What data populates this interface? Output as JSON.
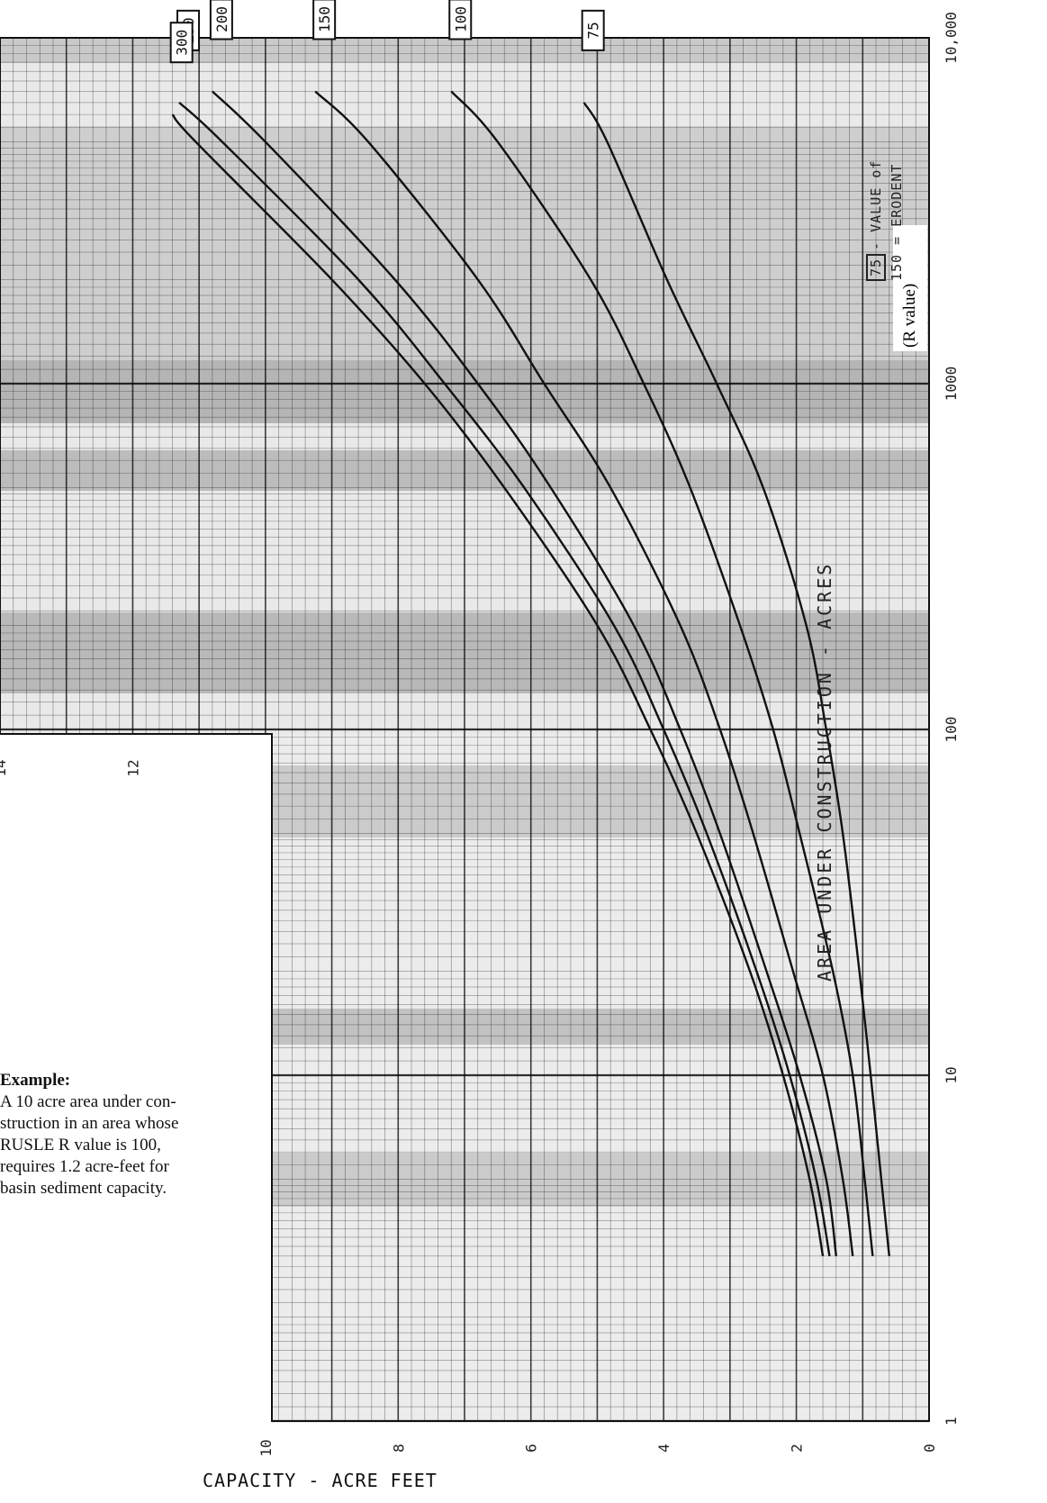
{
  "example": {
    "title": "Example:",
    "lines": [
      "A 10 acre area under con-",
      "struction in an area whose",
      "RUSLE R value is 100,",
      "requires 1.2 acre-feet for",
      "basin sediment capacity."
    ]
  },
  "annotation": {
    "r_value_label": "(R value)"
  },
  "legend_note": {
    "boxed": "75",
    "text": "- VALUE of",
    "sub": "150 = ERODENT"
  },
  "chart_data": {
    "type": "line",
    "title": "",
    "xlabel": "AREA UNDER CONSTRUCTION - ACRES",
    "ylabel": "CAPACITY - ACRE FEET",
    "x_scale": "log",
    "xlim": [
      1,
      10000
    ],
    "ylim": [
      0,
      14
    ],
    "x_tick_labels": [
      "1",
      "10",
      "100",
      "1000",
      "10,000"
    ],
    "y_tick_labels": [
      "0",
      "2",
      "4",
      "6",
      "8",
      "10",
      "12",
      "14"
    ],
    "y_ticks": [
      0,
      2,
      4,
      6,
      8,
      10,
      12,
      14
    ],
    "x_ticks": [
      1,
      10,
      100,
      1000,
      10000
    ],
    "grid": true,
    "series": [
      {
        "name": "75",
        "x": [
          3,
          5,
          10,
          20,
          50,
          100,
          200,
          500,
          1000,
          2000,
          5000,
          6500
        ],
        "y": [
          0.6,
          0.72,
          0.88,
          1.05,
          1.3,
          1.55,
          1.85,
          2.5,
          3.2,
          3.95,
          4.85,
          5.2
        ]
      },
      {
        "name": "100",
        "x": [
          3,
          5,
          10,
          20,
          50,
          100,
          200,
          500,
          1000,
          2000,
          5000,
          7000
        ],
        "y": [
          0.85,
          0.97,
          1.15,
          1.45,
          1.95,
          2.35,
          2.85,
          3.6,
          4.3,
          5.1,
          6.5,
          7.2
        ]
      },
      {
        "name": "150",
        "x": [
          3,
          5,
          10,
          20,
          50,
          100,
          200,
          500,
          1000,
          2000,
          5000,
          7000
        ],
        "y": [
          1.15,
          1.3,
          1.6,
          2.05,
          2.65,
          3.15,
          3.75,
          4.8,
          5.8,
          6.8,
          8.45,
          9.25
        ]
      },
      {
        "name": "200",
        "x": [
          3,
          5,
          10,
          20,
          50,
          100,
          200,
          500,
          1000,
          2000,
          5000,
          7000
        ],
        "y": [
          1.4,
          1.55,
          1.95,
          2.45,
          3.15,
          3.75,
          4.45,
          5.7,
          6.8,
          8.05,
          10.0,
          10.8
        ]
      },
      {
        "name": "250",
        "x": [
          3,
          5,
          10,
          20,
          50,
          100,
          200,
          500,
          1000,
          2000,
          5000,
          6500
        ],
        "y": [
          1.5,
          1.7,
          2.1,
          2.6,
          3.35,
          4.0,
          4.75,
          6.1,
          7.3,
          8.6,
          10.65,
          11.3
        ]
      },
      {
        "name": "300",
        "x": [
          3,
          5,
          10,
          20,
          50,
          100,
          200,
          500,
          1000,
          2000,
          5000,
          6000
        ],
        "y": [
          1.6,
          1.8,
          2.2,
          2.7,
          3.5,
          4.2,
          5.0,
          6.4,
          7.6,
          9.0,
          11.05,
          11.4
        ]
      }
    ]
  }
}
